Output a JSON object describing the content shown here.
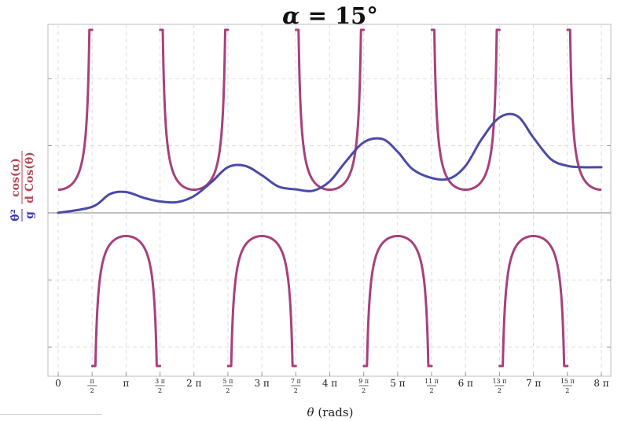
{
  "chart_data": {
    "type": "line",
    "title_var": "α",
    "title_eq": " = 15°",
    "xlabel_var": "θ",
    "xlabel_unit": " (rads)",
    "ylabel": {
      "series1_num": "θ̇²",
      "series1_den": "g",
      "series2_num": "cos(α)",
      "series2_den": "d Cos(θ)"
    },
    "alpha_deg": 15,
    "xlim": [
      0,
      25.1327
    ],
    "ylim": [
      -2.3,
      2.7
    ],
    "grid": true,
    "x_ticks": [
      {
        "num": "0",
        "den": "",
        "pi": false
      },
      {
        "num": "π",
        "den": "2",
        "pi": false
      },
      {
        "num": "",
        "den": "",
        "pi": true
      },
      {
        "num": "3 π",
        "den": "2",
        "pi": false
      },
      {
        "num": "2",
        "den": "",
        "pi": true
      },
      {
        "num": "5 π",
        "den": "2",
        "pi": false
      },
      {
        "num": "3",
        "den": "",
        "pi": true
      },
      {
        "num": "7 π",
        "den": "2",
        "pi": false
      },
      {
        "num": "4",
        "den": "",
        "pi": true
      },
      {
        "num": "9 π",
        "den": "2",
        "pi": false
      },
      {
        "num": "5",
        "den": "",
        "pi": true
      },
      {
        "num": "11 π",
        "den": "2",
        "pi": false
      },
      {
        "num": "6",
        "den": "",
        "pi": true
      },
      {
        "num": "13 π",
        "den": "2",
        "pi": false
      },
      {
        "num": "7",
        "den": "",
        "pi": true
      },
      {
        "num": "15 π",
        "den": "2",
        "pi": false
      },
      {
        "num": "8",
        "den": "",
        "pi": true
      }
    ],
    "series": [
      {
        "id": "energy",
        "color": "#4a4aa8",
        "x": [
          0,
          1.5708,
          2.4,
          3.1416,
          4.0,
          4.7124,
          5.5,
          6.2832,
          7.1,
          7.854,
          8.65,
          9.4248,
          10.2,
          10.9956,
          11.8,
          12.5664,
          13.3,
          14.1372,
          15.0,
          15.708,
          16.4,
          17.2788,
          18.1,
          18.8496,
          19.6,
          20.4204,
          21.25,
          21.9911,
          22.8,
          23.5619,
          24.3,
          25.1327
        ],
        "y": [
          0,
          0.09,
          0.28,
          0.31,
          0.22,
          0.17,
          0.16,
          0.25,
          0.46,
          0.68,
          0.7,
          0.56,
          0.39,
          0.35,
          0.33,
          0.47,
          0.76,
          1.05,
          1.1,
          0.91,
          0.65,
          0.52,
          0.51,
          0.7,
          1.1,
          1.42,
          1.44,
          1.12,
          0.8,
          0.7,
          0.68,
          0.68
        ]
      },
      {
        "id": "potential",
        "color": "#a8407c",
        "formula": "cos(alpha)/(d*cos(theta))"
      }
    ]
  }
}
